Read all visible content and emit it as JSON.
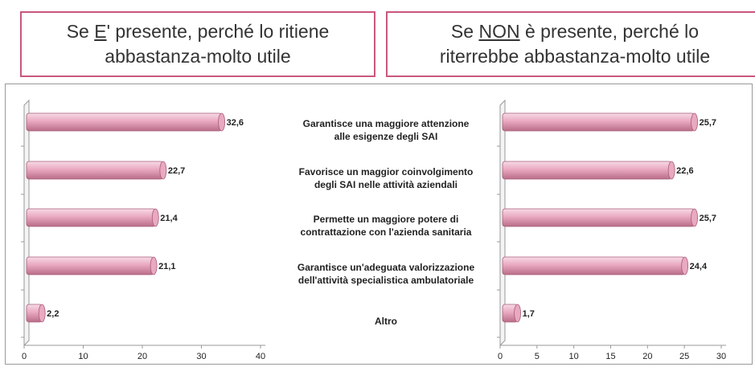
{
  "chart_data": [
    {
      "type": "bar",
      "orientation": "horizontal",
      "title": {
        "before": "Se ",
        "underlined": "E",
        "after": "' presente, perché lo ritiene",
        "line2": "abbastanza-molto utile"
      },
      "categories": [
        "Garantisce una maggiore attenzione\nalle esigenze degli SAI",
        "Favorisce un maggior coinvolgimento\ndegli SAI nelle attività aziendali",
        "Permette un maggiore potere di\ncontrattazione con l'azienda sanitaria",
        "Garantisce un'adeguata valorizzazione\ndell'attività specialistica ambulatoriale",
        "Altro"
      ],
      "values": [
        32.6,
        22.7,
        21.4,
        21.1,
        2.2
      ],
      "value_labels": [
        "32,6",
        "22,7",
        "21,4",
        "21,1",
        "2,2"
      ],
      "color": "#e9a9c0",
      "xlim": [
        0,
        40
      ],
      "xticks": [
        0,
        10,
        20,
        30,
        40
      ]
    },
    {
      "type": "bar",
      "orientation": "horizontal",
      "title": {
        "before": "Se ",
        "underlined": "NON",
        "after": " è presente, perché lo",
        "line2": "riterrebbe abbastanza-molto utile"
      },
      "values": [
        25.7,
        22.6,
        25.7,
        24.4,
        1.7
      ],
      "value_labels": [
        "25,7",
        "22,6",
        "25,7",
        "24,4",
        "1,7"
      ],
      "color": "#e9a9c0",
      "xlim": [
        0,
        30
      ],
      "xticks": [
        0,
        5,
        10,
        15,
        20,
        25,
        30
      ]
    }
  ]
}
